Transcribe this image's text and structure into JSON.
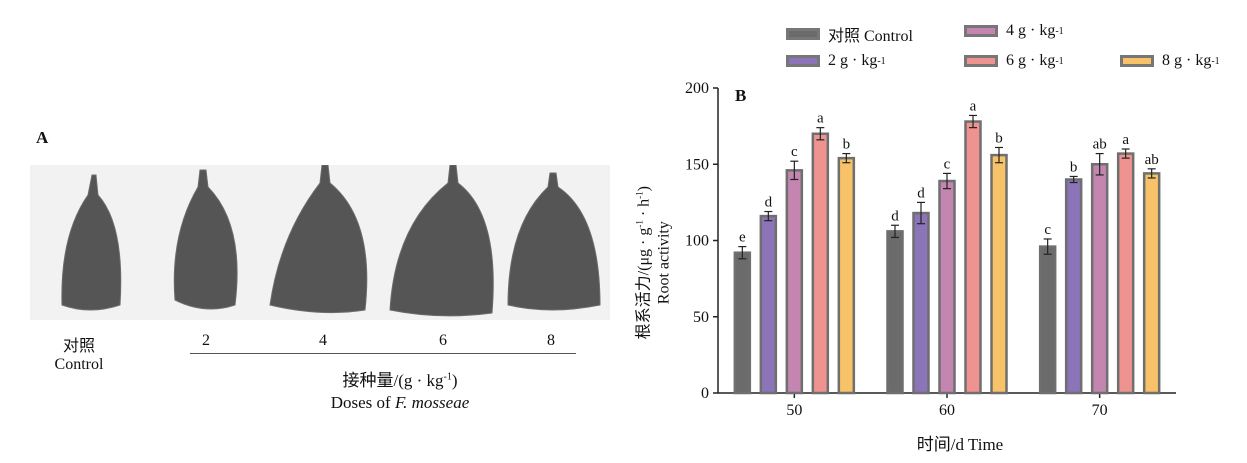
{
  "panel_a": {
    "label": "A",
    "roots": [
      {
        "name": "对照",
        "sub": "Control"
      },
      {
        "name": "2"
      },
      {
        "name": "4"
      },
      {
        "name": "6"
      },
      {
        "name": "8"
      }
    ],
    "axis_title_cn": "接种量/(g · kg",
    "axis_title_sup": "-1",
    "axis_title_end": ")",
    "axis_title_en_prefix": "Doses of ",
    "axis_title_en_species": "F. mosseae"
  },
  "chart_data": {
    "type": "bar",
    "panel_label": "B",
    "categories": [
      "50",
      "60",
      "70"
    ],
    "xlabel": "时间/d  Time",
    "ylabel_cn": "根系活力/(μg · g",
    "ylabel_en": "Root activity",
    "ylim": [
      0,
      200
    ],
    "yticks": [
      "0",
      "50",
      "100",
      "150",
      "200"
    ],
    "series": [
      {
        "name": "对照 Control",
        "color": "#6b6b6b",
        "values": [
          92,
          106,
          96
        ],
        "errors": [
          4,
          4,
          5
        ],
        "letters": [
          "e",
          "d",
          "c"
        ]
      },
      {
        "name": "2 g · kg",
        "sup": "-1",
        "color": "#8b74b8",
        "values": [
          116,
          118,
          140
        ],
        "errors": [
          3,
          7,
          2
        ],
        "letters": [
          "d",
          "d",
          "b"
        ]
      },
      {
        "name": "4 g · kg",
        "sup": "-1",
        "color": "#c485b0",
        "values": [
          146,
          139,
          150
        ],
        "errors": [
          6,
          5,
          7
        ],
        "letters": [
          "c",
          "c",
          "ab"
        ]
      },
      {
        "name": "6 g · kg",
        "sup": "-1",
        "color": "#ee938f",
        "values": [
          170,
          178,
          157
        ],
        "errors": [
          4,
          4,
          3
        ],
        "letters": [
          "a",
          "a",
          "a"
        ]
      },
      {
        "name": "8 g · kg",
        "sup": "-1",
        "color": "#f7c268",
        "values": [
          154,
          156,
          144
        ],
        "errors": [
          3,
          5,
          3
        ],
        "letters": [
          "b",
          "b",
          "ab"
        ]
      }
    ]
  }
}
